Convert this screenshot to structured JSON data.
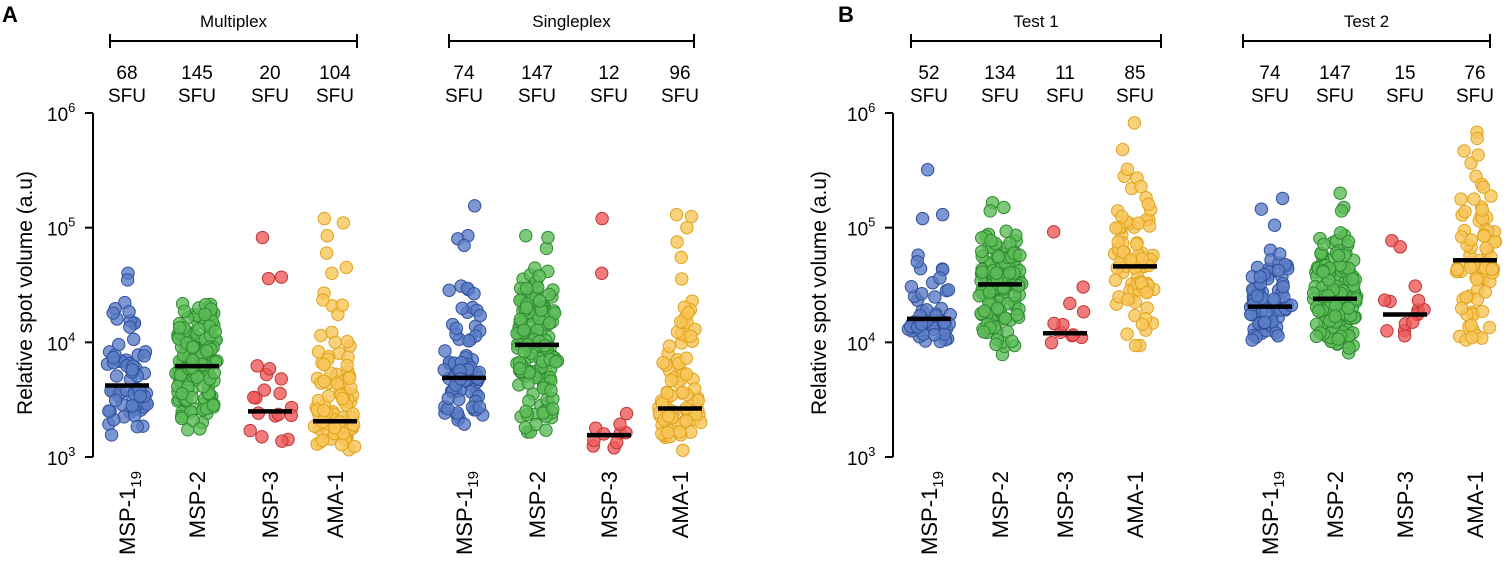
{
  "colors": {
    "MSP-1": {
      "fill": "#5b7dc6",
      "stroke": "#2f4f9c"
    },
    "MSP-2": {
      "fill": "#5cbc58",
      "stroke": "#2e8a31"
    },
    "MSP-3": {
      "fill": "#ee5a5a",
      "stroke": "#c03434"
    },
    "AMA-1": {
      "fill": "#f7c65a",
      "stroke": "#e0a31c"
    },
    "median": "#000000"
  },
  "chart_data": [
    {
      "type": "scatter",
      "panel_label": "A",
      "ylabel": "Relative spot volume (a.u)",
      "yscale": "log",
      "ylim": [
        1000,
        1000000
      ],
      "yticks": [
        {
          "base": "10",
          "exp": "3"
        },
        {
          "base": "10",
          "exp": "4"
        },
        {
          "base": "10",
          "exp": "5"
        },
        {
          "base": "10",
          "exp": "6"
        }
      ],
      "groups": [
        {
          "label": "Multiplex",
          "series": [
            {
              "name": "MSP-1",
              "label_main": "MSP-1",
              "label_sub": "19",
              "sfu_count": "68",
              "sfu_unit": "SFU",
              "median": 4200,
              "range": [
                1500,
                40000
              ],
              "n": 68,
              "outliers": [
                40000,
                35000,
                18000
              ]
            },
            {
              "name": "MSP-2",
              "label_main": "MSP-2",
              "label_sub": "",
              "sfu_count": "145",
              "sfu_unit": "SFU",
              "median": 6200,
              "range": [
                1550,
                30000
              ],
              "n": 145,
              "outliers": []
            },
            {
              "name": "MSP-3",
              "label_main": "MSP-3",
              "label_sub": "",
              "sfu_count": "20",
              "sfu_unit": "SFU",
              "median": 2500,
              "range": [
                1000,
                11000
              ],
              "n": 20,
              "outliers": [
                82000,
                37000,
                36000
              ]
            },
            {
              "name": "AMA-1",
              "label_main": "AMA-1",
              "label_sub": "",
              "sfu_count": "104",
              "sfu_unit": "SFU",
              "median": 2050,
              "range": [
                1050,
                30000
              ],
              "n": 104,
              "outliers": [
                120000,
                110000,
                85000,
                60000,
                45000,
                40000
              ]
            }
          ]
        },
        {
          "label": "Singleplex",
          "series": [
            {
              "name": "MSP-1",
              "label_main": "MSP-1",
              "label_sub": "19",
              "sfu_count": "74",
              "sfu_unit": "SFU",
              "median": 4900,
              "range": [
                1400,
                50000
              ],
              "n": 74,
              "outliers": [
                155000,
                85000,
                80000,
                70000
              ]
            },
            {
              "name": "MSP-2",
              "label_main": "MSP-2",
              "label_sub": "",
              "sfu_count": "147",
              "sfu_unit": "SFU",
              "median": 9500,
              "range": [
                1450,
                75000
              ],
              "n": 147,
              "outliers": [
                85000,
                82000
              ]
            },
            {
              "name": "MSP-3",
              "label_main": "MSP-3",
              "label_sub": "",
              "sfu_count": "12",
              "sfu_unit": "SFU",
              "median": 1550,
              "range": [
                1000,
                3500
              ],
              "n": 12,
              "outliers": [
                120000,
                40000
              ]
            },
            {
              "name": "AMA-1",
              "label_main": "AMA-1",
              "label_sub": "",
              "sfu_count": "96",
              "sfu_unit": "SFU",
              "median": 2650,
              "range": [
                1050,
                40000
              ],
              "n": 96,
              "outliers": [
                130000,
                125000,
                100000,
                75000,
                55000
              ]
            }
          ]
        }
      ]
    },
    {
      "type": "scatter",
      "panel_label": "B",
      "ylabel": "Relative spot volume (a.u)",
      "yscale": "log",
      "ylim": [
        1000,
        1000000
      ],
      "yticks": [
        {
          "base": "10",
          "exp": "3"
        },
        {
          "base": "10",
          "exp": "4"
        },
        {
          "base": "10",
          "exp": "5"
        },
        {
          "base": "10",
          "exp": "6"
        }
      ],
      "groups": [
        {
          "label": "Test 1",
          "series": [
            {
              "name": "MSP-1",
              "label_main": "MSP-1",
              "label_sub": "19",
              "sfu_count": "52",
              "sfu_unit": "SFU",
              "median": 16000,
              "range": [
                8500,
                80000
              ],
              "n": 52,
              "outliers": [
                320000,
                130000,
                120000
              ]
            },
            {
              "name": "MSP-2",
              "label_main": "MSP-2",
              "label_sub": "",
              "sfu_count": "134",
              "sfu_unit": "SFU",
              "median": 32000,
              "range": [
                7800,
                120000
              ],
              "n": 134,
              "outliers": [
                165000,
                150000,
                140000
              ]
            },
            {
              "name": "MSP-3",
              "label_main": "MSP-3",
              "label_sub": "",
              "sfu_count": "11",
              "sfu_unit": "SFU",
              "median": 12000,
              "range": [
                7200,
                36000
              ],
              "n": 11,
              "outliers": [
                92000
              ]
            },
            {
              "name": "AMA-1",
              "label_main": "AMA-1",
              "label_sub": "",
              "sfu_count": "85",
              "sfu_unit": "SFU",
              "median": 46000,
              "range": [
                7000,
                450000
              ],
              "n": 85,
              "outliers": [
                820000,
                480000
              ]
            }
          ]
        },
        {
          "label": "Test 2",
          "series": [
            {
              "name": "MSP-1",
              "label_main": "MSP-1",
              "label_sub": "19",
              "sfu_count": "74",
              "sfu_unit": "SFU",
              "median": 20500,
              "range": [
                8000,
                70000
              ],
              "n": 74,
              "outliers": [
                180000,
                145000,
                105000
              ]
            },
            {
              "name": "MSP-2",
              "label_main": "MSP-2",
              "label_sub": "",
              "sfu_count": "147",
              "sfu_unit": "SFU",
              "median": 24000,
              "range": [
                7800,
                100000
              ],
              "n": 147,
              "outliers": [
                200000,
                150000,
                140000
              ]
            },
            {
              "name": "MSP-3",
              "label_main": "MSP-3",
              "label_sub": "",
              "sfu_count": "15",
              "sfu_unit": "SFU",
              "median": 17500,
              "range": [
                9000,
                36000
              ],
              "n": 15,
              "outliers": [
                77000,
                68000
              ]
            },
            {
              "name": "AMA-1",
              "label_main": "AMA-1",
              "label_sub": "",
              "sfu_count": "76",
              "sfu_unit": "SFU",
              "median": 52000,
              "range": [
                7000,
                500000
              ],
              "n": 76,
              "outliers": [
                680000,
                600000
              ]
            }
          ]
        }
      ]
    }
  ]
}
